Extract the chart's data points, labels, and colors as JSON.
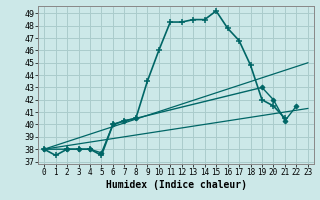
{
  "xlabel": "Humidex (Indice chaleur)",
  "background_color": "#cce8e8",
  "grid_color": "#aacccc",
  "line_color": "#006666",
  "xlim": [
    -0.5,
    23.5
  ],
  "ylim": [
    36.8,
    49.6
  ],
  "yticks": [
    37,
    38,
    39,
    40,
    41,
    42,
    43,
    44,
    45,
    46,
    47,
    48,
    49
  ],
  "xticks": [
    0,
    1,
    2,
    3,
    4,
    5,
    6,
    7,
    8,
    9,
    10,
    11,
    12,
    13,
    14,
    15,
    16,
    17,
    18,
    19,
    20,
    21,
    22,
    23
  ],
  "curve1_x": [
    0,
    1,
    2,
    3,
    4,
    5,
    6,
    7,
    8,
    9,
    10,
    11,
    12,
    13,
    14,
    15,
    16,
    17,
    18,
    19,
    20,
    21
  ],
  "curve1_y": [
    38.0,
    37.5,
    38.0,
    38.0,
    38.0,
    37.5,
    40.0,
    40.3,
    40.5,
    43.5,
    46.0,
    48.3,
    48.3,
    48.5,
    48.5,
    49.2,
    47.8,
    46.8,
    44.8,
    42.0,
    41.5,
    40.5
  ],
  "curve2_x": [
    0,
    2,
    3,
    4,
    5,
    6,
    7,
    8,
    19,
    20,
    21,
    22
  ],
  "curve2_y": [
    38.0,
    38.0,
    38.0,
    38.0,
    37.7,
    40.0,
    40.3,
    40.5,
    43.0,
    42.0,
    40.3,
    41.5
  ],
  "line1_x": [
    0,
    23
  ],
  "line1_y": [
    38.0,
    45.0
  ],
  "line2_x": [
    0,
    23
  ],
  "line2_y": [
    38.0,
    41.3
  ]
}
